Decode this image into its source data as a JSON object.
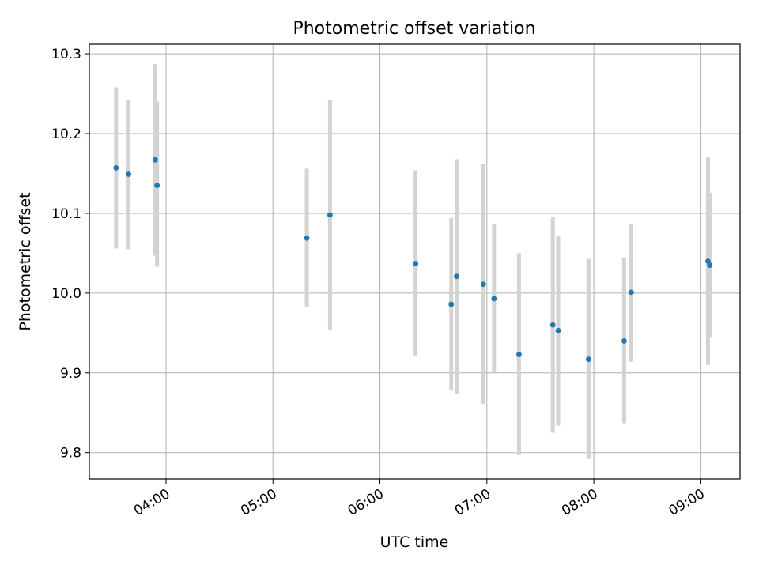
{
  "chart_data": {
    "type": "scatter",
    "title": "Photometric offset variation",
    "xlabel": "UTC time",
    "ylabel": "Photometric offset",
    "xlim": [
      "03:17",
      "09:22"
    ],
    "ylim": [
      9.767,
      10.312
    ],
    "x_ticks": [
      "04:00",
      "05:00",
      "06:00",
      "07:00",
      "08:00",
      "09:00"
    ],
    "y_ticks": [
      9.8,
      9.9,
      10.0,
      10.1,
      10.2,
      10.3
    ],
    "y_tick_labels": [
      "9.8",
      "9.9",
      "10.0",
      "10.1",
      "10.2",
      "10.3"
    ],
    "grid": true,
    "marker_color": "#1f77b4",
    "errorbar_color": "#d3d3d3",
    "points": [
      {
        "t": "03:32",
        "y": 10.157,
        "lo": 10.056,
        "hi": 10.258
      },
      {
        "t": "03:39",
        "y": 10.149,
        "lo": 10.055,
        "hi": 10.242
      },
      {
        "t": "03:54",
        "y": 10.167,
        "lo": 10.047,
        "hi": 10.287
      },
      {
        "t": "03:55",
        "y": 10.135,
        "lo": 10.033,
        "hi": 10.24
      },
      {
        "t": "05:19",
        "y": 10.069,
        "lo": 9.982,
        "hi": 10.156
      },
      {
        "t": "05:32",
        "y": 10.098,
        "lo": 9.954,
        "hi": 10.242
      },
      {
        "t": "06:20",
        "y": 10.037,
        "lo": 9.921,
        "hi": 10.154
      },
      {
        "t": "06:40",
        "y": 9.986,
        "lo": 9.878,
        "hi": 10.094
      },
      {
        "t": "06:43",
        "y": 10.021,
        "lo": 9.873,
        "hi": 10.168
      },
      {
        "t": "06:58",
        "y": 10.011,
        "lo": 9.861,
        "hi": 10.162
      },
      {
        "t": "07:04",
        "y": 9.993,
        "lo": 9.9,
        "hi": 10.087
      },
      {
        "t": "07:18",
        "y": 9.923,
        "lo": 9.797,
        "hi": 10.05
      },
      {
        "t": "07:37",
        "y": 9.96,
        "lo": 9.825,
        "hi": 10.096
      },
      {
        "t": "07:40",
        "y": 9.953,
        "lo": 9.834,
        "hi": 10.072
      },
      {
        "t": "07:57",
        "y": 9.917,
        "lo": 9.792,
        "hi": 10.043
      },
      {
        "t": "08:17",
        "y": 9.94,
        "lo": 9.837,
        "hi": 10.044
      },
      {
        "t": "08:21",
        "y": 10.001,
        "lo": 9.914,
        "hi": 10.087
      },
      {
        "t": "09:04",
        "y": 10.04,
        "lo": 9.91,
        "hi": 10.17
      },
      {
        "t": "09:05",
        "y": 10.035,
        "lo": 9.944,
        "hi": 10.126
      }
    ]
  }
}
